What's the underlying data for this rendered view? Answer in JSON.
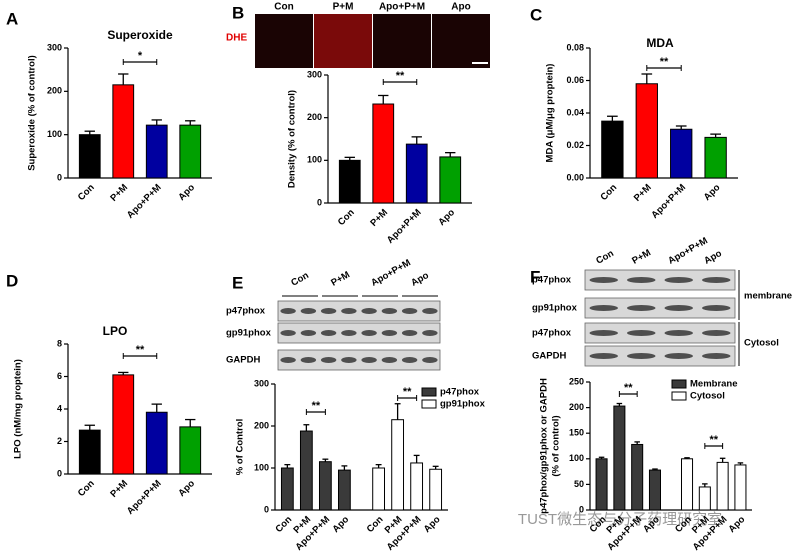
{
  "watermark": "TUST微生态与分子药理研究室",
  "chart_data": [
    {
      "type": "bar",
      "panel_label": "A",
      "title": "Superoxide",
      "ylabel": [
        "Superoxide (% of control)"
      ],
      "categories": [
        "Con",
        "P+M",
        "Apo+P+M",
        "Apo"
      ],
      "series": [
        {
          "values": [
            100,
            215,
            122,
            122
          ],
          "errors": [
            8,
            25,
            12,
            10
          ],
          "colors": [
            "#000000",
            "#ff0000",
            "#0000a0",
            "#00a000"
          ]
        }
      ],
      "ylim": [
        0,
        300
      ],
      "yticks": [
        0,
        100,
        200,
        300
      ],
      "annotations": [
        "*"
      ]
    },
    {
      "type": "bar",
      "panel_label": "B",
      "ylabel": [
        "Density (% of control)"
      ],
      "image": {
        "stain": "DHE",
        "lanes": [
          "Con",
          "P+M",
          "Apo+P+M",
          "Apo"
        ]
      },
      "categories": [
        "Con",
        "P+M",
        "Apo+P+M",
        "Apo"
      ],
      "series": [
        {
          "values": [
            100,
            232,
            138,
            108
          ],
          "errors": [
            7,
            20,
            17,
            10
          ],
          "colors": [
            "#000000",
            "#ff0000",
            "#0000a0",
            "#00a000"
          ]
        }
      ],
      "ylim": [
        0,
        300
      ],
      "yticks": [
        0,
        100,
        200,
        300
      ],
      "annotations": [
        "**"
      ]
    },
    {
      "type": "bar",
      "panel_label": "C",
      "title": "MDA",
      "ylabel": [
        "MDA (μM/μg proptein)"
      ],
      "categories": [
        "Con",
        "P+M",
        "Apo+P+M",
        "Apo"
      ],
      "series": [
        {
          "values": [
            0.035,
            0.058,
            0.03,
            0.025
          ],
          "errors": [
            0.003,
            0.006,
            0.002,
            0.002
          ],
          "colors": [
            "#000000",
            "#ff0000",
            "#0000a0",
            "#00a000"
          ]
        }
      ],
      "ylim": [
        0,
        0.08
      ],
      "yticks": [
        {
          "value": 0,
          "label": "0.00"
        },
        0.02,
        0.04,
        0.06,
        0.08
      ],
      "annotations": [
        "**"
      ]
    },
    {
      "type": "bar",
      "panel_label": "D",
      "title": "LPO",
      "ylabel": [
        "LPO (nM/mg proptein)"
      ],
      "categories": [
        "Con",
        "P+M",
        "Apo+P+M",
        "Apo"
      ],
      "series": [
        {
          "values": [
            2.7,
            6.1,
            3.8,
            2.9
          ],
          "errors": [
            0.3,
            0.15,
            0.5,
            0.45
          ],
          "colors": [
            "#000000",
            "#ff0000",
            "#0000a0",
            "#00a000"
          ]
        }
      ],
      "ylim": [
        0,
        8
      ],
      "yticks": [
        0,
        2,
        4,
        6,
        8
      ],
      "annotations": [
        "**"
      ]
    },
    {
      "type": "bar",
      "panel_label": "E",
      "ylabel": [
        "% of Control"
      ],
      "blot": {
        "lanes": [
          "Con",
          "P+M",
          "Apo+P+M",
          "Apo"
        ],
        "rows": [
          "p47phox",
          "gp91phox",
          "GAPDH"
        ]
      },
      "categories": [
        "Con",
        "P+M",
        "Apo+P+M",
        "Apo",
        "Con",
        "P+M",
        "Apo+P+M",
        "Apo"
      ],
      "series": [
        {
          "name": "p47phox",
          "color": "#3a3a3a",
          "values": [
            100,
            188,
            115,
            95,
            null,
            null,
            null,
            null
          ],
          "errors": [
            8,
            15,
            6,
            10,
            null,
            null,
            null,
            null
          ]
        },
        {
          "name": "gp91phox",
          "color": "#ffffff",
          "values": [
            null,
            null,
            null,
            null,
            100,
            215,
            112,
            97
          ],
          "errors": [
            null,
            null,
            null,
            null,
            8,
            38,
            18,
            7
          ]
        }
      ],
      "ylim": [
        0,
        300
      ],
      "yticks": [
        0,
        100,
        200,
        300
      ],
      "annotations": [
        "**",
        "**"
      ]
    },
    {
      "type": "bar",
      "panel_label": "F",
      "ylabel": [
        "p47phox/gp91phox or GAPDH",
        "(% of control)"
      ],
      "blot": {
        "lanes": [
          "Con",
          "P+M",
          "Apo+P+M",
          "Apo"
        ],
        "rows": [
          "p47phox",
          "gp91phox",
          "p47phox",
          "GAPDH"
        ],
        "fractions": [
          "membrane",
          "Cytosol"
        ]
      },
      "categories": [
        "Con",
        "P+M",
        "Apo+P+M",
        "Apo",
        "Con",
        "P+M",
        "Apo+P+M",
        "Apo"
      ],
      "series": [
        {
          "name": "Membrane",
          "color": "#3a3a3a",
          "values": [
            100,
            203,
            128,
            78,
            null,
            null,
            null,
            null
          ],
          "errors": [
            3,
            5,
            5,
            2,
            null,
            null,
            null,
            null
          ]
        },
        {
          "name": "Cytosol",
          "color": "#ffffff",
          "values": [
            null,
            null,
            null,
            null,
            100,
            45,
            93,
            88
          ],
          "errors": [
            null,
            null,
            null,
            null,
            2,
            6,
            8,
            4
          ]
        }
      ],
      "ylim": [
        0,
        250
      ],
      "yticks": [
        0,
        50,
        100,
        150,
        200,
        250
      ],
      "annotations": [
        "**",
        "**"
      ]
    }
  ]
}
